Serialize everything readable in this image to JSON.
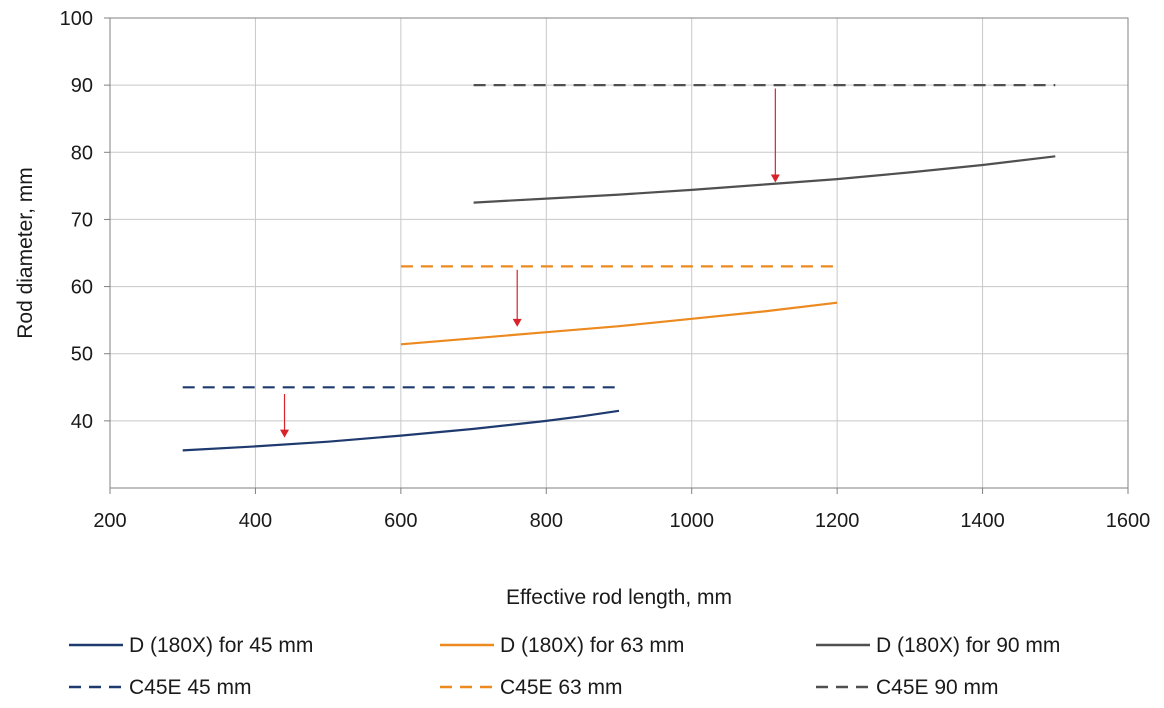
{
  "chart_data": {
    "type": "line",
    "title": "",
    "xlabel": "Effective rod length, mm",
    "ylabel": "Rod diameter, mm",
    "xlim": [
      200,
      1600
    ],
    "ylim": [
      30,
      100
    ],
    "xticks": [
      200,
      400,
      600,
      800,
      1000,
      1200,
      1400,
      1600
    ],
    "yticks": [
      40,
      50,
      60,
      70,
      80,
      90,
      100
    ],
    "grid": true,
    "legend_position": "bottom",
    "series": [
      {
        "name": "D (180X) for 45 mm",
        "color": "#1f3a6e",
        "dash": "solid",
        "points": [
          [
            300,
            35.6
          ],
          [
            400,
            36.2
          ],
          [
            500,
            36.9
          ],
          [
            600,
            37.8
          ],
          [
            700,
            38.8
          ],
          [
            800,
            40.0
          ],
          [
            850,
            40.7
          ],
          [
            900,
            41.5
          ]
        ]
      },
      {
        "name": "D (180X) for 63 mm",
        "color": "#ec8a1f",
        "dash": "solid",
        "points": [
          [
            600,
            51.4
          ],
          [
            700,
            52.3
          ],
          [
            800,
            53.2
          ],
          [
            900,
            54.1
          ],
          [
            1000,
            55.2
          ],
          [
            1100,
            56.3
          ],
          [
            1200,
            57.6
          ]
        ]
      },
      {
        "name": "D (180X) for 90 mm",
        "color": "#505050",
        "dash": "solid",
        "points": [
          [
            700,
            72.5
          ],
          [
            800,
            73.1
          ],
          [
            900,
            73.7
          ],
          [
            1000,
            74.4
          ],
          [
            1100,
            75.2
          ],
          [
            1200,
            76.0
          ],
          [
            1300,
            77.0
          ],
          [
            1400,
            78.1
          ],
          [
            1500,
            79.4
          ]
        ]
      },
      {
        "name": "C45E 45 mm",
        "color": "#1f3a6e",
        "dash": "dashed",
        "points": [
          [
            300,
            45
          ],
          [
            900,
            45
          ]
        ]
      },
      {
        "name": "C45E 63 mm",
        "color": "#ec8a1f",
        "dash": "dashed",
        "points": [
          [
            600,
            63
          ],
          [
            1200,
            63
          ]
        ]
      },
      {
        "name": "C45E 90 mm",
        "color": "#505050",
        "dash": "dashed",
        "points": [
          [
            700,
            90
          ],
          [
            1500,
            90
          ]
        ]
      }
    ],
    "annotations": [
      {
        "type": "arrow",
        "color": "#d9232a",
        "x": 440,
        "y_from": 44,
        "y_to": 37.5
      },
      {
        "type": "arrow",
        "color": "#d9232a",
        "x": 760,
        "y_from": 62.5,
        "y_to": 54
      },
      {
        "type": "arrow",
        "color": "#d9232a",
        "x": 1115,
        "y_from": 89.5,
        "y_to": 75.5
      }
    ],
    "legend_columns": 3
  }
}
